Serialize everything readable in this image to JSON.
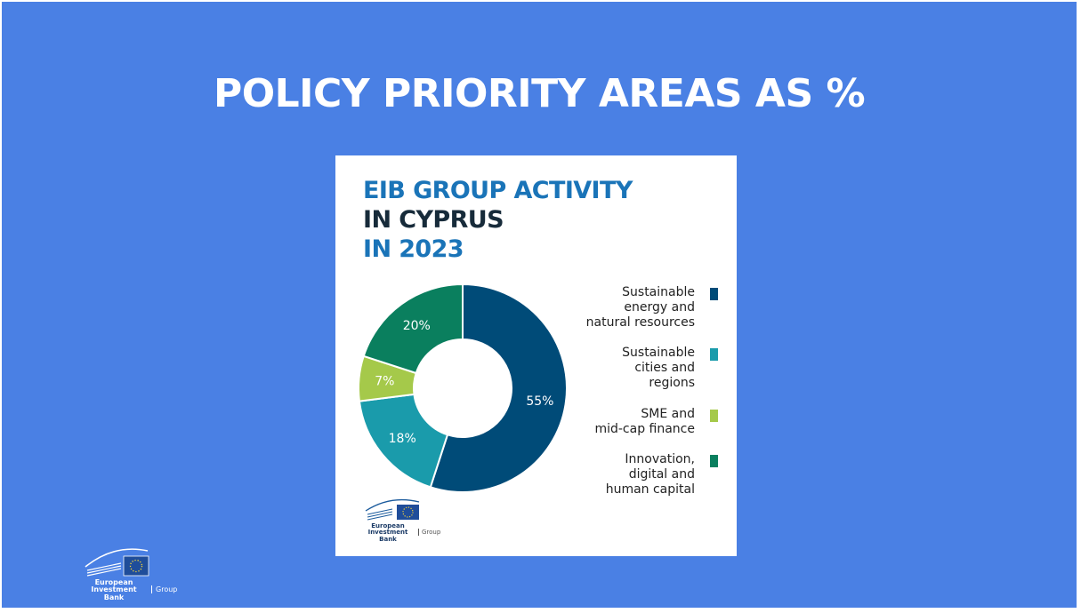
{
  "slide": {
    "title": "POLICY PRIORITY AREAS AS %"
  },
  "card": {
    "title_line1": "EIB GROUP ACTIVITY",
    "title_line2": "IN CYPRUS",
    "title_line3": "IN 2023"
  },
  "chart_data": {
    "type": "pie",
    "title": "EIB GROUP ACTIVITY IN CYPRUS IN 2023",
    "donut": true,
    "slices": [
      {
        "label": "Sustainable energy and natural resources",
        "value": 55,
        "display": "55%",
        "color": "#004b78"
      },
      {
        "label": "Sustainable cities and regions",
        "value": 18,
        "display": "18%",
        "color": "#1a9bab"
      },
      {
        "label": "SME and mid-cap finance",
        "value": 7,
        "display": "7%",
        "color": "#a5c94a"
      },
      {
        "label": "Innovation, digital and human capital",
        "value": 20,
        "display": "20%",
        "color": "#0a7f5e"
      }
    ],
    "legend_placement": "right"
  },
  "legend": [
    {
      "text": "Sustainable\nenergy and\nnatural resources",
      "color": "#004b78"
    },
    {
      "text": "Sustainable\ncities and\nregions",
      "color": "#1a9bab"
    },
    {
      "text": "SME and\nmid-cap finance",
      "color": "#a5c94a"
    },
    {
      "text": "Innovation,\ndigital and\nhuman capital",
      "color": "#0a7f5e"
    }
  ],
  "logo": {
    "line1": "European",
    "line2": "Investment Bank",
    "group": "Group"
  }
}
